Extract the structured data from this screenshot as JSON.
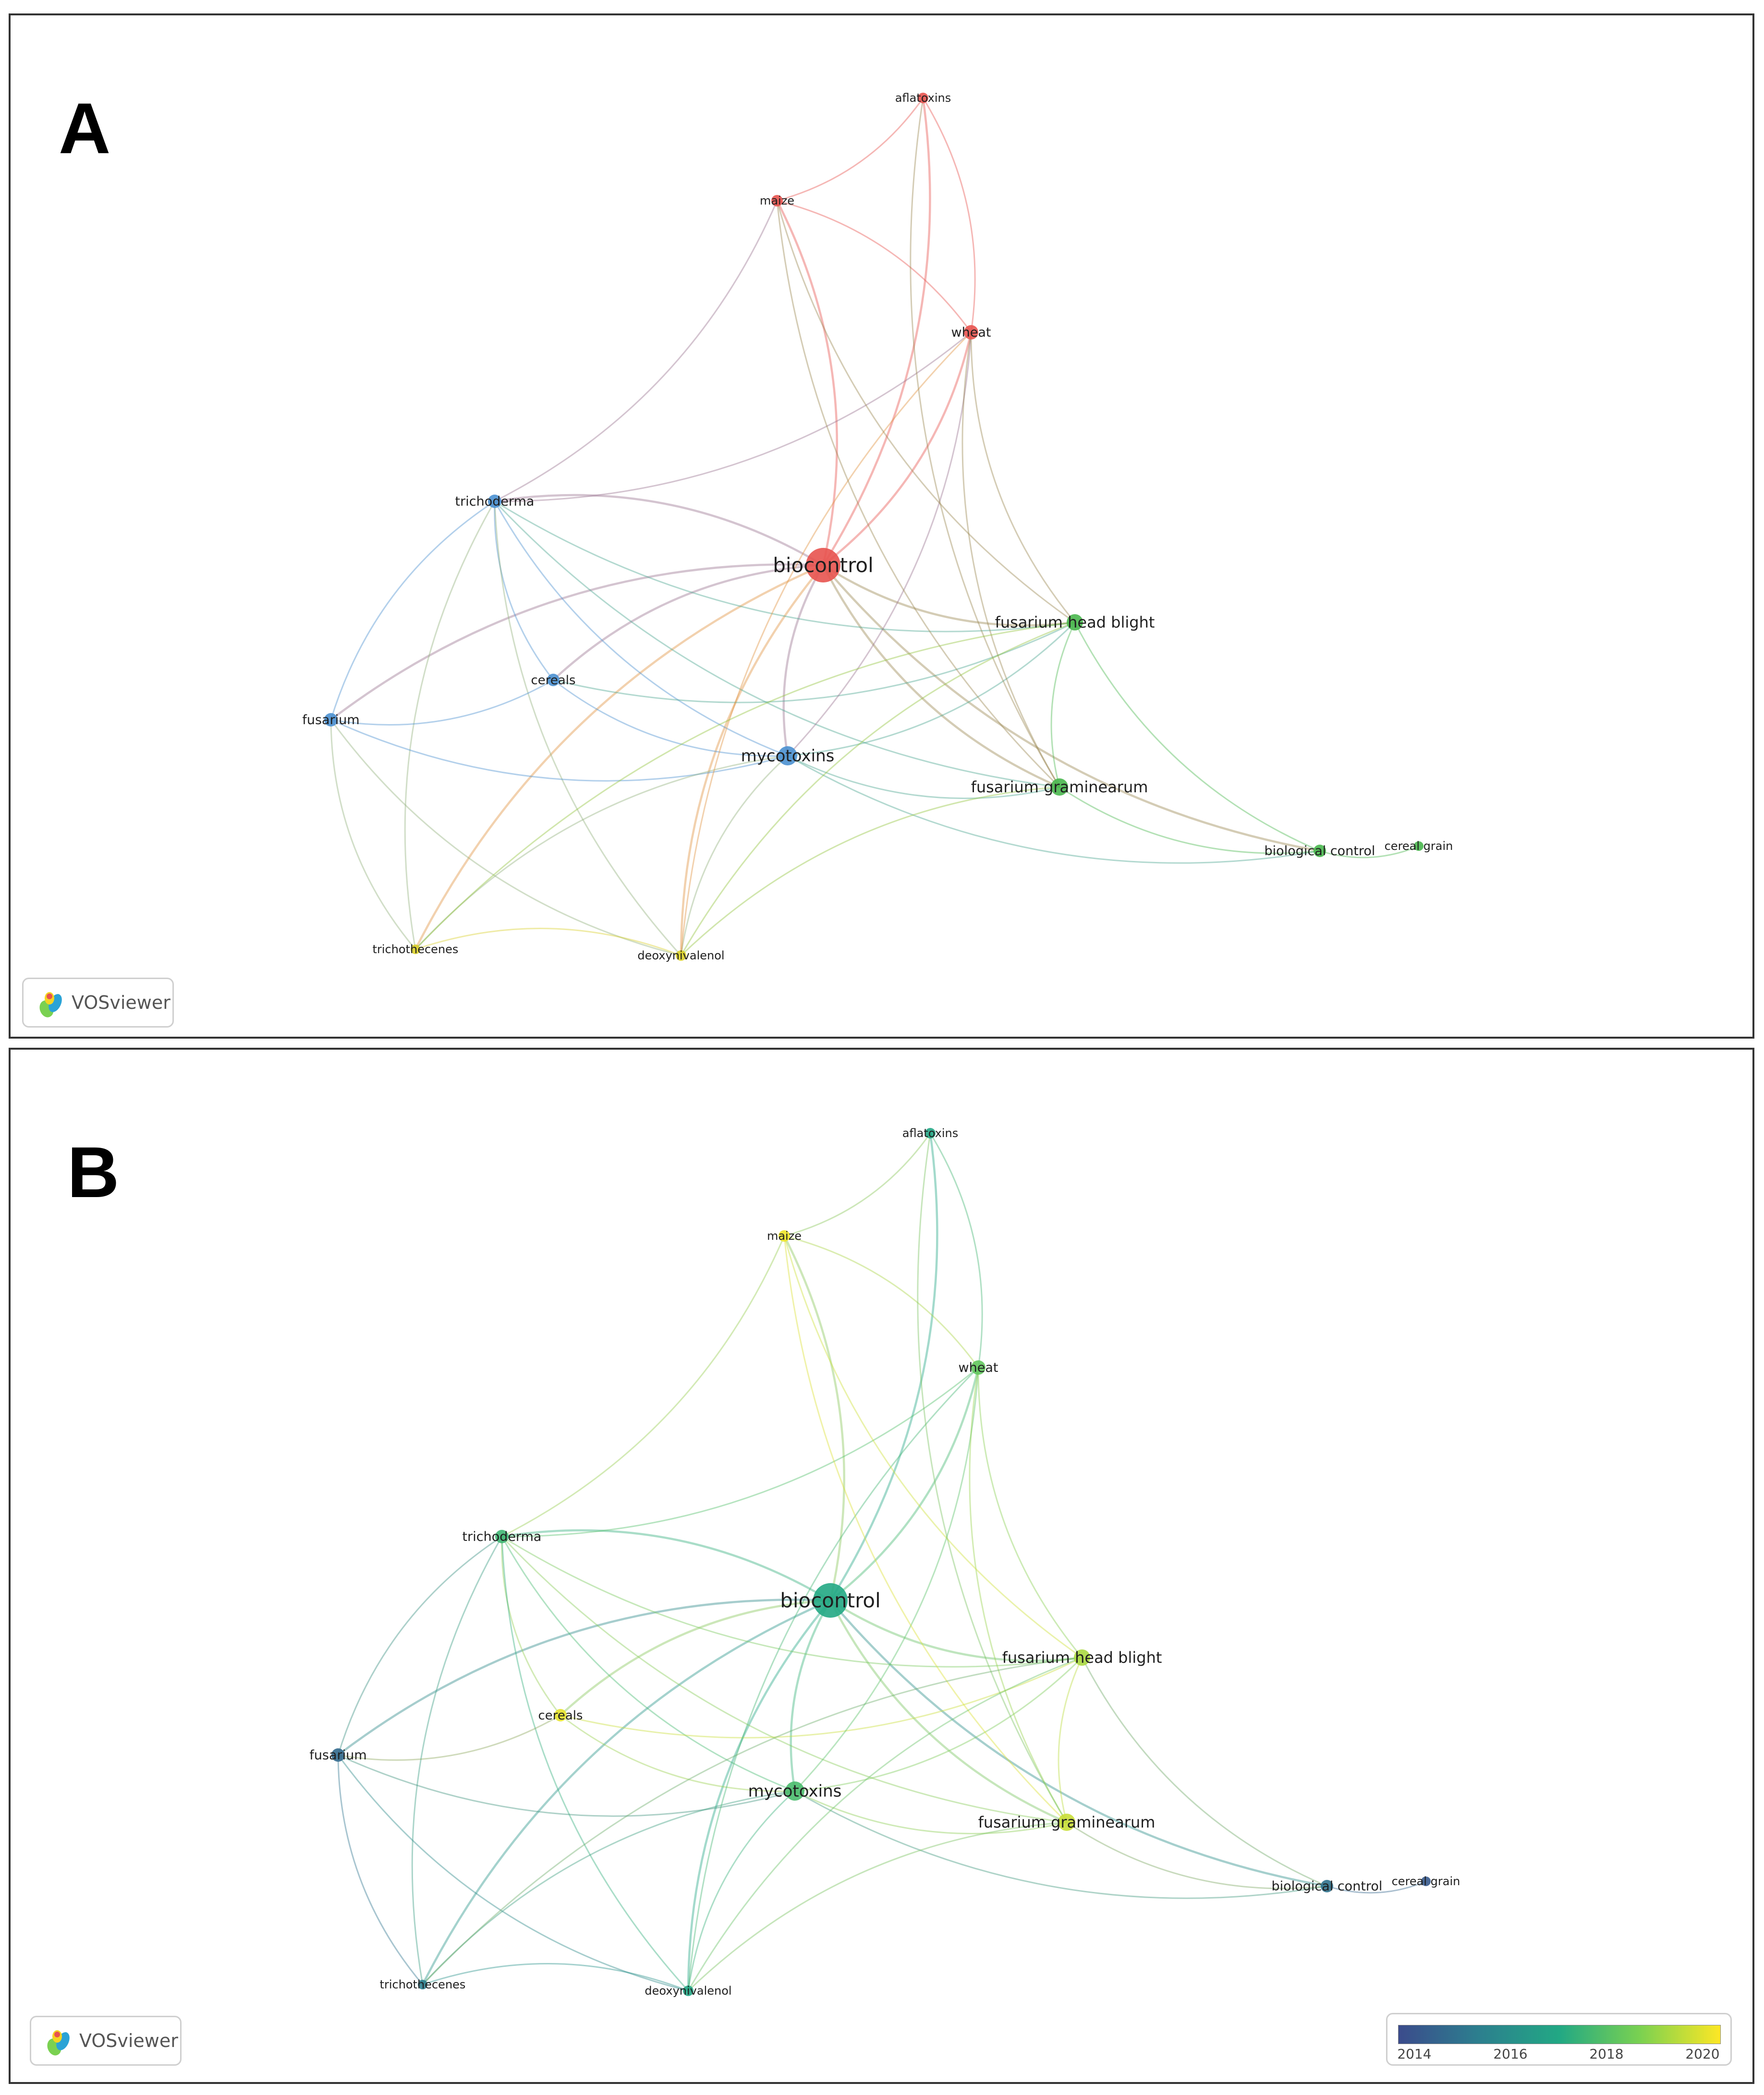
{
  "panels": [
    {
      "id": "A",
      "letter": "A",
      "badge_text": "VOSviewer"
    },
    {
      "id": "B",
      "letter": "B",
      "badge_text": "VOSviewer"
    }
  ],
  "nodes": [
    {
      "id": "biocontrol",
      "label": "biocontrol"
    },
    {
      "id": "mycotoxins",
      "label": "mycotoxins"
    },
    {
      "id": "fusarium-head-blight",
      "label": "fusarium head blight"
    },
    {
      "id": "fusarium-graminearum",
      "label": "fusarium graminearum"
    },
    {
      "id": "trichoderma",
      "label": "trichoderma"
    },
    {
      "id": "fusarium",
      "label": "fusarium"
    },
    {
      "id": "cereals",
      "label": "cereals"
    },
    {
      "id": "wheat",
      "label": "wheat"
    },
    {
      "id": "maize",
      "label": "maize"
    },
    {
      "id": "aflatoxins",
      "label": "aflatoxins"
    },
    {
      "id": "biological-control",
      "label": "biological control"
    },
    {
      "id": "cereal-grain",
      "label": "cereal grain"
    },
    {
      "id": "trichothecenes",
      "label": "trichothecenes"
    },
    {
      "id": "deoxynivalenol",
      "label": "deoxynivalenol"
    }
  ],
  "links": [
    [
      "biocontrol",
      "mycotoxins"
    ],
    [
      "biocontrol",
      "wheat"
    ],
    [
      "biocontrol",
      "maize"
    ],
    [
      "biocontrol",
      "aflatoxins"
    ],
    [
      "biocontrol",
      "trichoderma"
    ],
    [
      "biocontrol",
      "fusarium"
    ],
    [
      "biocontrol",
      "cereals"
    ],
    [
      "biocontrol",
      "fusarium-head-blight"
    ],
    [
      "biocontrol",
      "fusarium-graminearum"
    ],
    [
      "biocontrol",
      "deoxynivalenol"
    ],
    [
      "biocontrol",
      "trichothecenes"
    ],
    [
      "biocontrol",
      "biological-control"
    ],
    [
      "trichoderma",
      "fusarium"
    ],
    [
      "trichoderma",
      "mycotoxins"
    ],
    [
      "trichoderma",
      "cereals"
    ],
    [
      "trichoderma",
      "maize"
    ],
    [
      "trichoderma",
      "wheat"
    ],
    [
      "trichoderma",
      "fusarium-head-blight"
    ],
    [
      "trichoderma",
      "deoxynivalenol"
    ],
    [
      "trichoderma",
      "trichothecenes"
    ],
    [
      "trichoderma",
      "fusarium-graminearum"
    ],
    [
      "fusarium",
      "mycotoxins"
    ],
    [
      "fusarium",
      "cereals"
    ],
    [
      "fusarium",
      "trichothecenes"
    ],
    [
      "fusarium",
      "deoxynivalenol"
    ],
    [
      "cereals",
      "mycotoxins"
    ],
    [
      "cereals",
      "fusarium-head-blight"
    ],
    [
      "mycotoxins",
      "fusarium-graminearum"
    ],
    [
      "mycotoxins",
      "fusarium-head-blight"
    ],
    [
      "mycotoxins",
      "wheat"
    ],
    [
      "mycotoxins",
      "deoxynivalenol"
    ],
    [
      "mycotoxins",
      "trichothecenes"
    ],
    [
      "mycotoxins",
      "biological-control"
    ],
    [
      "wheat",
      "maize"
    ],
    [
      "wheat",
      "aflatoxins"
    ],
    [
      "wheat",
      "fusarium-head-blight"
    ],
    [
      "wheat",
      "fusarium-graminearum"
    ],
    [
      "wheat",
      "deoxynivalenol"
    ],
    [
      "maize",
      "aflatoxins"
    ],
    [
      "maize",
      "fusarium-graminearum"
    ],
    [
      "maize",
      "fusarium-head-blight"
    ],
    [
      "aflatoxins",
      "fusarium-graminearum"
    ],
    [
      "fusarium-head-blight",
      "fusarium-graminearum"
    ],
    [
      "fusarium-head-blight",
      "biological-control"
    ],
    [
      "fusarium-head-blight",
      "deoxynivalenol"
    ],
    [
      "fusarium-head-blight",
      "trichothecenes"
    ],
    [
      "fusarium-graminearum",
      "biological-control"
    ],
    [
      "fusarium-graminearum",
      "deoxynivalenol"
    ],
    [
      "biological-control",
      "cereal-grain"
    ],
    [
      "deoxynivalenol",
      "trichothecenes"
    ]
  ],
  "panel_b_legend": {
    "ticks": [
      "2014",
      "2016",
      "2018",
      "2020"
    ],
    "range": [
      2013.5,
      2020.5
    ],
    "colors": [
      "#3b4b8c",
      "#2c7f8e",
      "#22a884",
      "#7ad151",
      "#fde725"
    ]
  },
  "node_years": {
    "biocontrol": 2017.0,
    "mycotoxins": 2017.8,
    "fusarium-head-blight": 2019.4,
    "fusarium-graminearum": 2019.8,
    "trichoderma": 2017.6,
    "fusarium": 2014.5,
    "cereals": 2020.2,
    "wheat": 2018.3,
    "maize": 2020.3,
    "aflatoxins": 2016.9,
    "biological-control": 2014.8,
    "cereal-grain": 2014.0,
    "trichothecenes": 2015.2,
    "deoxynivalenol": 2016.9
  },
  "cluster_colors": {
    "red": "#e8534f",
    "blue": "#4a90d0",
    "green": "#49b74e",
    "yellow": "#d9cf2a"
  },
  "node_clusters": {
    "biocontrol": "red",
    "wheat": "red",
    "maize": "red",
    "aflatoxins": "red",
    "mycotoxins": "blue",
    "trichoderma": "blue",
    "fusarium": "blue",
    "cereals": "blue",
    "fusarium-head-blight": "green",
    "fusarium-graminearum": "green",
    "biological-control": "green",
    "cereal-grain": "green",
    "trichothecenes": "yellow",
    "deoxynivalenol": "yellow"
  }
}
